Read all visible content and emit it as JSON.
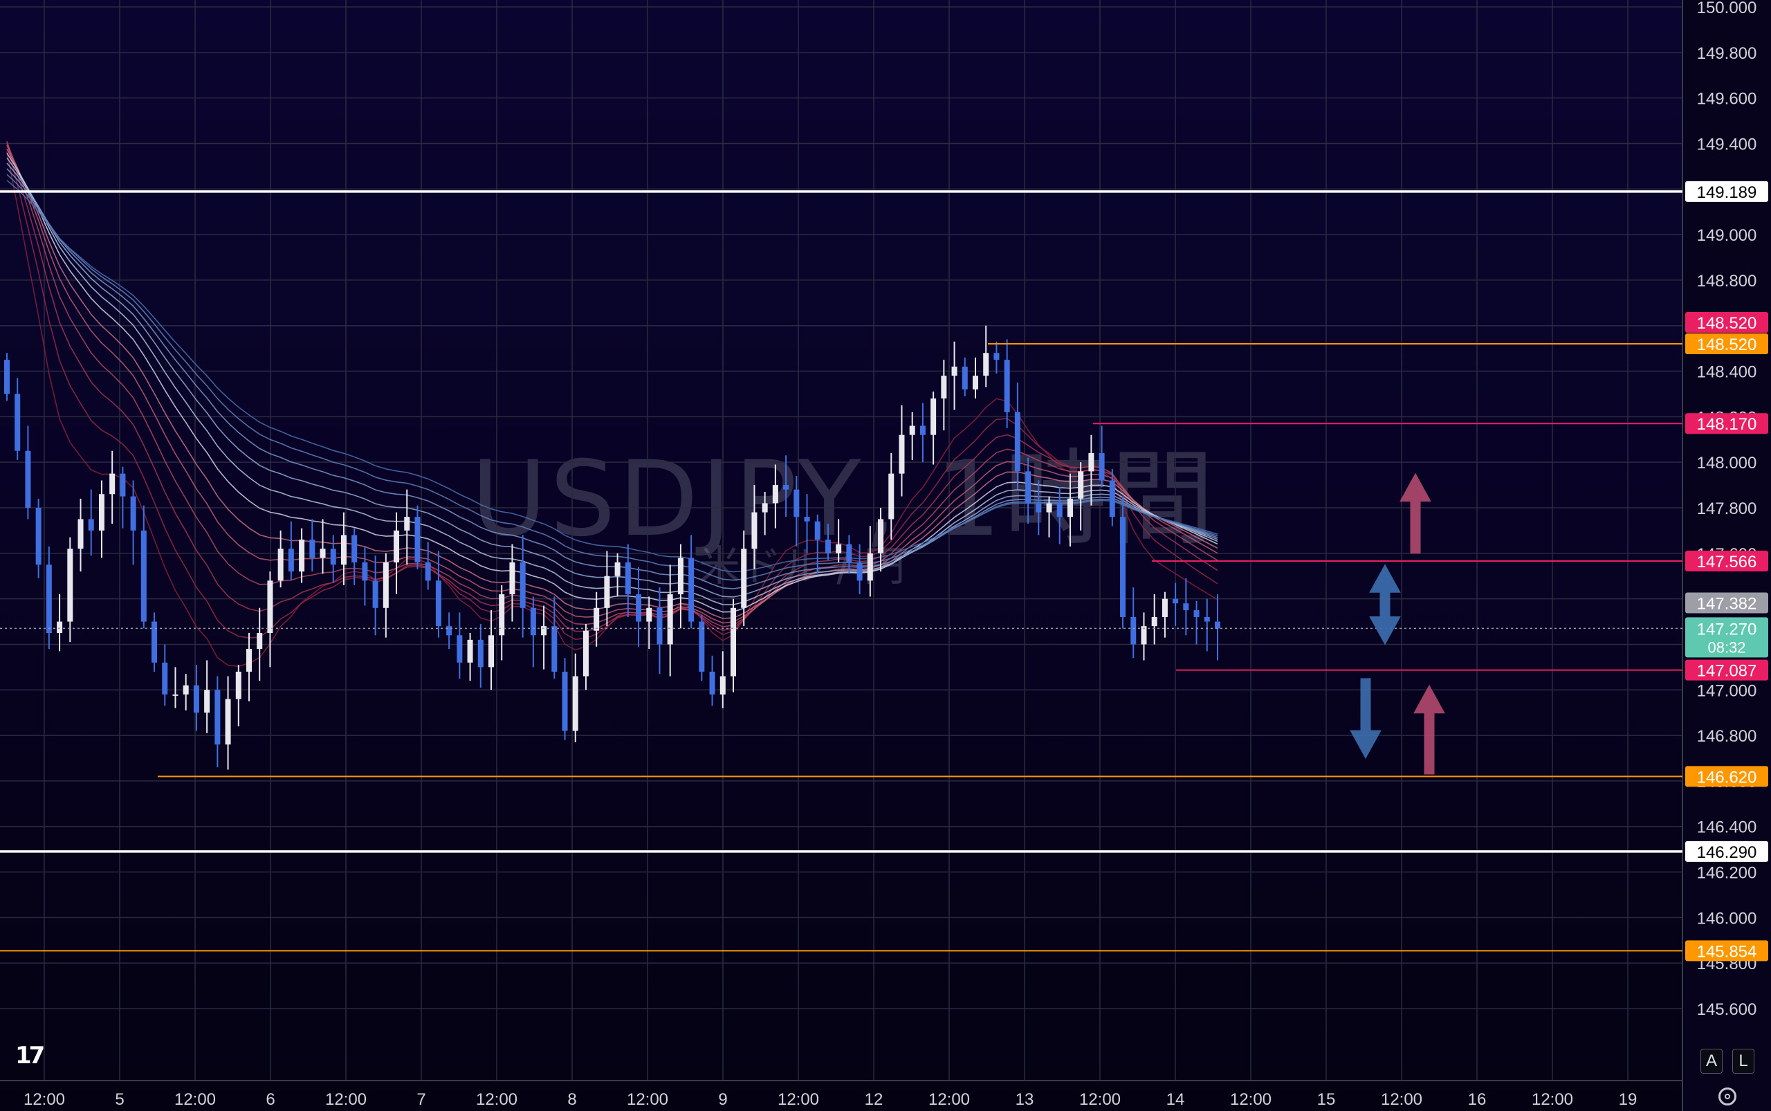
{
  "chart_data": {
    "type": "candlestick",
    "symbol_watermark": "USDJPY, 1時間",
    "symbol_sub": "米ドル / 円",
    "ylim": [
      145.45,
      150.0
    ],
    "y_ticks": [
      "150.000",
      "149.800",
      "149.600",
      "149.400",
      "149.200",
      "149.000",
      "148.800",
      "148.600",
      "148.400",
      "148.200",
      "148.000",
      "147.800",
      "147.600",
      "147.400",
      "147.200",
      "147.000",
      "146.800",
      "146.600",
      "146.400",
      "146.200",
      "146.000",
      "145.800",
      "145.600"
    ],
    "x_labels": [
      "12:00",
      "5",
      "12:00",
      "6",
      "12:00",
      "7",
      "12:00",
      "8",
      "12:00",
      "9",
      "12:00",
      "12",
      "12:00",
      "13",
      "12:00",
      "14",
      "12:00",
      "15",
      "12:00",
      "16",
      "12:00",
      "19"
    ],
    "horizontal_lines": [
      {
        "price": 149.189,
        "label": "149.189",
        "color": "#ffffff",
        "style": "white"
      },
      {
        "price": 148.52,
        "label": "148.520",
        "color": "#e91e63",
        "style": "pink"
      },
      {
        "price": 148.52,
        "label": "148.520",
        "color": "#ff9800",
        "style": "orange"
      },
      {
        "price": 148.17,
        "label": "148.170",
        "color": "#e91e63",
        "style": "pink"
      },
      {
        "price": 147.566,
        "label": "147.566",
        "color": "#e91e63",
        "style": "pink"
      },
      {
        "price": 147.382,
        "label": "147.382",
        "color": "#9e9ea8",
        "style": "grey"
      },
      {
        "price": 147.087,
        "label": "147.087",
        "color": "#e91e63",
        "style": "pink"
      },
      {
        "price": 146.62,
        "label": "146.620",
        "color": "#ff9800",
        "style": "orange"
      },
      {
        "price": 146.29,
        "label": "146.290",
        "color": "#ffffff",
        "style": "white"
      },
      {
        "price": 145.854,
        "label": "145.854",
        "color": "#ff9800",
        "style": "orange"
      }
    ],
    "last_price": {
      "price": 147.27,
      "label": "147.270",
      "countdown": "08:32",
      "color": "#5ec9b0"
    },
    "arrows": [
      {
        "direction": "up",
        "color": "#b24a6e",
        "from": 147.6,
        "to": 147.95
      },
      {
        "direction": "both",
        "color": "#3d6fb0",
        "from": 147.2,
        "to": 147.55
      },
      {
        "direction": "down",
        "color": "#3d6fb0",
        "from": 146.7,
        "to": 147.05
      },
      {
        "direction": "up",
        "color": "#b24a6e",
        "from": 146.63,
        "to": 147.02
      }
    ],
    "candle_closes": [
      148.3,
      148.05,
      147.8,
      147.55,
      147.25,
      147.3,
      147.62,
      147.75,
      147.7,
      147.86,
      147.95,
      147.85,
      147.7,
      147.3,
      147.12,
      146.98,
      146.98,
      147.02,
      146.9,
      147.0,
      146.76,
      146.96,
      147.08,
      147.18,
      147.25,
      147.48,
      147.62,
      147.52,
      147.66,
      147.58,
      147.62,
      147.55,
      147.68,
      147.56,
      147.48,
      147.36,
      147.56,
      147.7,
      147.76,
      147.56,
      147.48,
      147.28,
      147.24,
      147.12,
      147.22,
      147.1,
      147.24,
      147.42,
      147.56,
      147.36,
      147.24,
      147.28,
      147.08,
      146.82,
      147.06,
      147.26,
      147.36,
      147.5,
      147.56,
      147.42,
      147.3,
      147.36,
      147.2,
      147.42,
      147.58,
      147.3,
      147.08,
      146.98,
      147.06,
      147.36,
      147.62,
      147.78,
      147.82,
      147.9,
      147.88,
      147.76,
      147.74,
      147.66,
      147.6,
      147.64,
      147.56,
      147.48,
      147.6,
      147.75,
      147.95,
      148.12,
      148.16,
      148.12,
      148.28,
      148.38,
      148.42,
      148.32,
      148.38,
      148.48,
      148.45,
      148.22,
      147.96,
      147.82,
      147.78,
      147.82,
      147.76,
      147.84,
      147.96,
      148.04,
      147.92,
      147.76,
      147.32,
      147.2,
      147.28,
      147.32,
      147.4,
      147.38,
      147.35,
      147.32,
      147.3,
      147.27
    ],
    "ema_periods": [
      10,
      14,
      18,
      22,
      26,
      30,
      35,
      40,
      45,
      50,
      55,
      60
    ]
  }
}
